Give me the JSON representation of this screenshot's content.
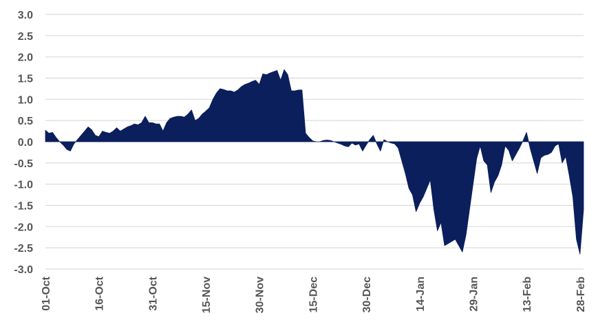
{
  "chart_data": {
    "type": "area",
    "title": "",
    "xlabel": "",
    "ylabel": "",
    "ylim": [
      -3.0,
      3.0
    ],
    "y_ticks": [
      "3.0",
      "2.5",
      "2.0",
      "1.5",
      "1.0",
      "0.5",
      "0.0",
      "-0.5",
      "-1.0",
      "-1.5",
      "-2.0",
      "-2.5",
      "-3.0"
    ],
    "x_tick_labels": [
      "01-Oct",
      "16-Oct",
      "31-Oct",
      "15-Nov",
      "30-Nov",
      "15-Dec",
      "30-Dec",
      "14-Jan",
      "29-Jan",
      "13-Feb",
      "28-Feb"
    ],
    "grid": true,
    "fill_color": "#0a1f5c",
    "grid_color": "#d9d9d9",
    "label_color": "#555555",
    "x_unit": "days since 01-Oct",
    "series": [
      {
        "values": [
          [
            0,
            0.27
          ],
          [
            1,
            0.2
          ],
          [
            2,
            0.22
          ],
          [
            3,
            0.1
          ],
          [
            4,
            0.0
          ],
          [
            5,
            -0.08
          ],
          [
            6,
            -0.18
          ],
          [
            7,
            -0.22
          ],
          [
            8,
            -0.05
          ],
          [
            9,
            0.05
          ],
          [
            10,
            0.15
          ],
          [
            11,
            0.25
          ],
          [
            12,
            0.35
          ],
          [
            13,
            0.28
          ],
          [
            14,
            0.15
          ],
          [
            15,
            0.12
          ],
          [
            16,
            0.25
          ],
          [
            17,
            0.22
          ],
          [
            18,
            0.2
          ],
          [
            19,
            0.25
          ],
          [
            20,
            0.33
          ],
          [
            21,
            0.25
          ],
          [
            22,
            0.3
          ],
          [
            23,
            0.35
          ],
          [
            24,
            0.38
          ],
          [
            25,
            0.42
          ],
          [
            26,
            0.4
          ],
          [
            27,
            0.45
          ],
          [
            28,
            0.6
          ],
          [
            29,
            0.45
          ],
          [
            30,
            0.45
          ],
          [
            31,
            0.42
          ],
          [
            32,
            0.42
          ],
          [
            33,
            0.25
          ],
          [
            34,
            0.45
          ],
          [
            35,
            0.55
          ],
          [
            36,
            0.58
          ],
          [
            37,
            0.6
          ],
          [
            38,
            0.6
          ],
          [
            39,
            0.58
          ],
          [
            40,
            0.65
          ],
          [
            41,
            0.75
          ],
          [
            42,
            0.5
          ],
          [
            43,
            0.55
          ],
          [
            44,
            0.65
          ],
          [
            45,
            0.72
          ],
          [
            46,
            0.8
          ],
          [
            47,
            1.0
          ],
          [
            48,
            1.15
          ],
          [
            49,
            1.25
          ],
          [
            50,
            1.23
          ],
          [
            51,
            1.2
          ],
          [
            52,
            1.2
          ],
          [
            53,
            1.17
          ],
          [
            54,
            1.22
          ],
          [
            55,
            1.3
          ],
          [
            56,
            1.35
          ],
          [
            57,
            1.38
          ],
          [
            58,
            1.42
          ],
          [
            59,
            1.45
          ],
          [
            60,
            1.35
          ],
          [
            61,
            1.6
          ],
          [
            62,
            1.58
          ],
          [
            63,
            1.62
          ],
          [
            64,
            1.65
          ],
          [
            65,
            1.68
          ],
          [
            66,
            1.45
          ],
          [
            67,
            1.7
          ],
          [
            68,
            1.58
          ],
          [
            69,
            1.2
          ],
          [
            70,
            1.2
          ],
          [
            71,
            1.22
          ],
          [
            72,
            1.22
          ],
          [
            73,
            0.2
          ],
          [
            74,
            0.1
          ],
          [
            75,
            0.02
          ],
          [
            76,
            0.0
          ],
          [
            77,
            0.0
          ],
          [
            78,
            0.03
          ],
          [
            79,
            0.04
          ],
          [
            80,
            0.03
          ],
          [
            81,
            0.0
          ],
          [
            82,
            -0.03
          ],
          [
            83,
            -0.06
          ],
          [
            84,
            -0.1
          ],
          [
            85,
            -0.12
          ],
          [
            86,
            -0.03
          ],
          [
            87,
            -0.08
          ],
          [
            88,
            -0.05
          ],
          [
            89,
            -0.22
          ],
          [
            90,
            -0.08
          ],
          [
            91,
            0.05
          ],
          [
            92,
            0.15
          ],
          [
            93,
            -0.05
          ],
          [
            94,
            -0.22
          ],
          [
            95,
            0.05
          ],
          [
            96,
            0.0
          ],
          [
            97,
            -0.03
          ],
          [
            98,
            -0.05
          ],
          [
            99,
            -0.15
          ],
          [
            100,
            -0.45
          ],
          [
            101,
            -0.75
          ],
          [
            102,
            -1.1
          ],
          [
            103,
            -1.25
          ],
          [
            104,
            -1.65
          ],
          [
            105,
            -1.45
          ],
          [
            106,
            -1.3
          ],
          [
            107,
            -1.1
          ],
          [
            108,
            -0.9
          ],
          [
            109,
            -1.6
          ],
          [
            110,
            -2.1
          ],
          [
            111,
            -1.9
          ],
          [
            112,
            -2.45
          ],
          [
            113,
            -2.4
          ],
          [
            114,
            -2.35
          ],
          [
            115,
            -2.3
          ],
          [
            116,
            -2.45
          ],
          [
            117,
            -2.6
          ],
          [
            118,
            -2.2
          ],
          [
            119,
            -1.6
          ],
          [
            120,
            -1.0
          ],
          [
            121,
            -0.4
          ],
          [
            122,
            -0.1
          ],
          [
            123,
            -0.45
          ],
          [
            124,
            -0.55
          ],
          [
            125,
            -1.2
          ],
          [
            126,
            -0.95
          ],
          [
            127,
            -0.8
          ],
          [
            128,
            -0.55
          ],
          [
            129,
            -0.1
          ],
          [
            130,
            -0.2
          ],
          [
            131,
            -0.45
          ],
          [
            132,
            -0.3
          ],
          [
            133,
            -0.15
          ],
          [
            134,
            0.02
          ],
          [
            135,
            0.22
          ],
          [
            136,
            -0.15
          ],
          [
            137,
            -0.45
          ],
          [
            138,
            -0.75
          ],
          [
            139,
            -0.38
          ],
          [
            140,
            -0.32
          ],
          [
            141,
            -0.3
          ],
          [
            142,
            -0.25
          ],
          [
            143,
            -0.1
          ],
          [
            144,
            -0.05
          ],
          [
            145,
            -0.5
          ],
          [
            146,
            -0.35
          ],
          [
            147,
            -0.8
          ],
          [
            148,
            -1.3
          ],
          [
            149,
            -2.3
          ],
          [
            150,
            -2.65
          ],
          [
            151,
            -1.6
          ]
        ]
      }
    ]
  }
}
